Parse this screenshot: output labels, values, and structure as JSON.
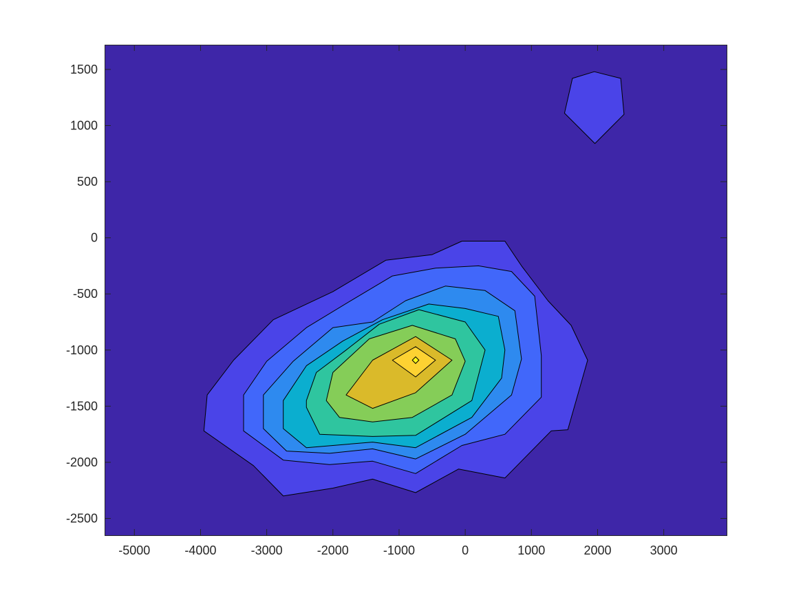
{
  "chart_data": {
    "type": "filled-contour",
    "title": "",
    "xlabel": "",
    "ylabel": "",
    "xlim": [
      -5450,
      3950
    ],
    "ylim": [
      -2650,
      1720
    ],
    "xticks": [
      -5000,
      -4000,
      -3000,
      -2000,
      -1000,
      0,
      1000,
      2000,
      3000
    ],
    "yticks": [
      -2500,
      -2000,
      -1500,
      -1000,
      -500,
      0,
      500,
      1000,
      1500
    ],
    "grid": false,
    "background_level_color": "#3E26A8",
    "colormap": "parula",
    "levels": [
      {
        "level": 1,
        "color": "#4A44E8",
        "regions": [
          [
            [
              -3950,
              -1720
            ],
            [
              -3200,
              -2030
            ],
            [
              -2750,
              -2300
            ],
            [
              -2000,
              -2230
            ],
            [
              -1400,
              -2150
            ],
            [
              -750,
              -2270
            ],
            [
              -100,
              -2060
            ],
            [
              600,
              -2140
            ],
            [
              1300,
              -1720
            ],
            [
              1550,
              -1710
            ],
            [
              1850,
              -1090
            ],
            [
              1600,
              -780
            ],
            [
              1250,
              -560
            ],
            [
              850,
              -250
            ],
            [
              600,
              -30
            ],
            [
              -50,
              -30
            ],
            [
              -500,
              -150
            ],
            [
              -1200,
              -200
            ],
            [
              -2000,
              -480
            ],
            [
              -2900,
              -730
            ],
            [
              -3500,
              -1090
            ],
            [
              -3900,
              -1400
            ]
          ],
          [
            [
              1500,
              1110
            ],
            [
              1620,
              1420
            ],
            [
              1950,
              1480
            ],
            [
              2350,
              1420
            ],
            [
              2400,
              1100
            ],
            [
              1960,
              840
            ]
          ]
        ]
      },
      {
        "level": 2,
        "color": "#4167FA",
        "regions": [
          [
            [
              -3350,
              -1720
            ],
            [
              -2750,
              -1980
            ],
            [
              -2050,
              -2020
            ],
            [
              -1400,
              -1990
            ],
            [
              -750,
              -2100
            ],
            [
              -50,
              -1850
            ],
            [
              600,
              -1750
            ],
            [
              1150,
              -1420
            ],
            [
              1150,
              -1050
            ],
            [
              1050,
              -520
            ],
            [
              700,
              -300
            ],
            [
              200,
              -250
            ],
            [
              -450,
              -270
            ],
            [
              -1100,
              -340
            ],
            [
              -1700,
              -550
            ],
            [
              -2400,
              -800
            ],
            [
              -3000,
              -1100
            ],
            [
              -3350,
              -1400
            ]
          ]
        ]
      },
      {
        "level": 3,
        "color": "#2E8AEF",
        "regions": [
          [
            [
              -3050,
              -1700
            ],
            [
              -2700,
              -1900
            ],
            [
              -2050,
              -1920
            ],
            [
              -1400,
              -1880
            ],
            [
              -750,
              -1970
            ],
            [
              0,
              -1750
            ],
            [
              700,
              -1400
            ],
            [
              850,
              -1080
            ],
            [
              750,
              -650
            ],
            [
              300,
              -470
            ],
            [
              -300,
              -430
            ],
            [
              -900,
              -560
            ],
            [
              -1400,
              -750
            ],
            [
              -2000,
              -800
            ],
            [
              -2600,
              -1100
            ],
            [
              -3050,
              -1400
            ]
          ]
        ]
      },
      {
        "level": 4,
        "color": "#0BAECF",
        "regions": [
          [
            [
              -2750,
              -1700
            ],
            [
              -2400,
              -1870
            ],
            [
              -1400,
              -1820
            ],
            [
              -750,
              -1870
            ],
            [
              100,
              -1600
            ],
            [
              550,
              -1250
            ],
            [
              600,
              -1000
            ],
            [
              500,
              -700
            ],
            [
              0,
              -630
            ],
            [
              -550,
              -590
            ],
            [
              -1250,
              -730
            ],
            [
              -1850,
              -920
            ],
            [
              -2400,
              -1140
            ],
            [
              -2750,
              -1450
            ]
          ]
        ]
      },
      {
        "level": 5,
        "color": "#2FC59F",
        "regions": [
          [
            [
              -2400,
              -1510
            ],
            [
              -2200,
              -1750
            ],
            [
              -1400,
              -1770
            ],
            [
              -750,
              -1760
            ],
            [
              100,
              -1450
            ],
            [
              300,
              -1000
            ],
            [
              0,
              -750
            ],
            [
              -700,
              -640
            ],
            [
              -1300,
              -770
            ],
            [
              -1800,
              -1000
            ],
            [
              -2250,
              -1200
            ],
            [
              -2400,
              -1450
            ]
          ]
        ]
      },
      {
        "level": 6,
        "color": "#85CD58",
        "regions": [
          [
            [
              -2100,
              -1450
            ],
            [
              -1900,
              -1600
            ],
            [
              -1400,
              -1640
            ],
            [
              -800,
              -1600
            ],
            [
              -200,
              -1400
            ],
            [
              0,
              -1100
            ],
            [
              -150,
              -900
            ],
            [
              -800,
              -780
            ],
            [
              -1450,
              -900
            ],
            [
              -2000,
              -1200
            ]
          ]
        ]
      },
      {
        "level": 7,
        "color": "#DABA2A",
        "regions": [
          [
            [
              -1800,
              -1400
            ],
            [
              -1400,
              -1520
            ],
            [
              -750,
              -1380
            ],
            [
              -200,
              -1090
            ],
            [
              -750,
              -880
            ],
            [
              -1400,
              -1090
            ]
          ]
        ]
      },
      {
        "level": 8,
        "color": "#FDD232",
        "regions": [
          [
            [
              -1100,
              -1090
            ],
            [
              -750,
              -1240
            ],
            [
              -450,
              -1090
            ],
            [
              -750,
              -970
            ]
          ]
        ]
      },
      {
        "level": 9,
        "color": "#F9FA15",
        "regions": [
          [
            [
              -800,
              -1090
            ],
            [
              -750,
              -1120
            ],
            [
              -700,
              -1090
            ],
            [
              -750,
              -1060
            ]
          ]
        ]
      }
    ]
  }
}
